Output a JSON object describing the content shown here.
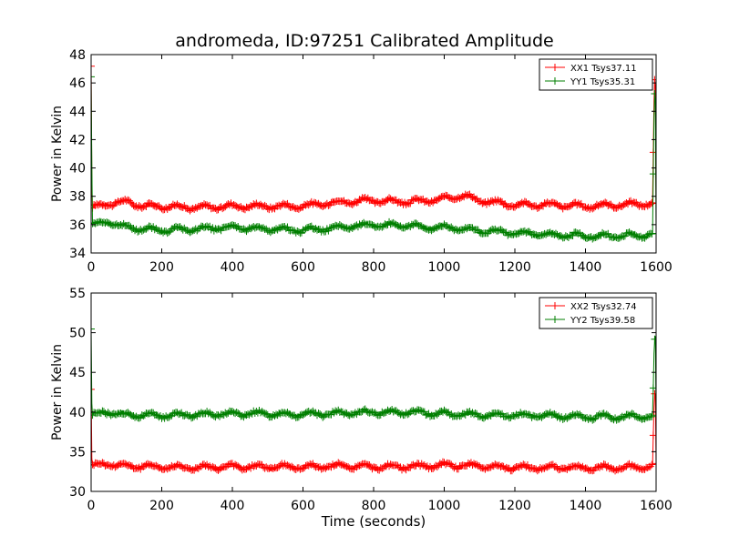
{
  "figure": {
    "title": "andromeda, ID:97251 Calibrated Amplitude",
    "xlabel": "Time (seconds)"
  },
  "colors": {
    "XX": "#ff0000",
    "YY": "#007f00",
    "axis": "#000000"
  },
  "chart_data": [
    {
      "type": "line",
      "markers": "plus",
      "ylabel": "Power in Kelvin",
      "xlim": [
        0,
        1600
      ],
      "ylim": [
        34,
        48
      ],
      "xticks": [
        0,
        200,
        400,
        600,
        800,
        1000,
        1200,
        1400,
        1600
      ],
      "yticks": [
        34,
        36,
        38,
        40,
        42,
        44,
        46,
        48
      ],
      "legend": "top-right",
      "series": [
        {
          "name": "XX1 Tsys37.11",
          "color": "#ff0000",
          "baseline": 37.3,
          "x": [
            0,
            1,
            2,
            3,
            50,
            100,
            150,
            200,
            300,
            400,
            500,
            600,
            700,
            800,
            900,
            1000,
            1050,
            1100,
            1200,
            1300,
            1400,
            1500,
            1590,
            1592,
            1595,
            1598,
            1600
          ],
          "y": [
            47.1,
            43.5,
            38.5,
            37.2,
            37.5,
            37.6,
            37.3,
            37.3,
            37.2,
            37.3,
            37.3,
            37.3,
            37.6,
            37.7,
            37.6,
            37.8,
            38.1,
            37.7,
            37.4,
            37.4,
            37.3,
            37.4,
            37.5,
            41.0,
            46.3,
            45.5,
            37.3
          ]
        },
        {
          "name": "YY1 Tsys35.31",
          "color": "#007f00",
          "baseline": 35.5,
          "x": [
            0,
            1,
            2,
            3,
            50,
            100,
            150,
            200,
            300,
            400,
            500,
            600,
            700,
            800,
            900,
            1000,
            1100,
            1200,
            1300,
            1400,
            1500,
            1590,
            1592,
            1595,
            1598,
            1600
          ],
          "y": [
            46.5,
            44.0,
            40.0,
            36.0,
            36.2,
            35.8,
            35.7,
            35.6,
            35.7,
            35.8,
            35.7,
            35.6,
            35.8,
            36.0,
            35.9,
            35.8,
            35.6,
            35.4,
            35.3,
            35.2,
            35.2,
            35.3,
            39.5,
            45.5,
            44.5,
            35.3
          ]
        }
      ]
    },
    {
      "type": "line",
      "markers": "plus",
      "ylabel": "Power in Kelvin",
      "xlabel": "Time (seconds)",
      "xlim": [
        0,
        1600
      ],
      "ylim": [
        30,
        55
      ],
      "xticks": [
        0,
        200,
        400,
        600,
        800,
        1000,
        1200,
        1400,
        1600
      ],
      "yticks": [
        30,
        35,
        40,
        45,
        50,
        55
      ],
      "legend": "top-right",
      "series": [
        {
          "name": "XX2 Tsys32.74",
          "color": "#ff0000",
          "baseline": 33.1,
          "x": [
            0,
            1,
            2,
            3,
            50,
            100,
            200,
            300,
            400,
            500,
            600,
            700,
            800,
            900,
            1000,
            1100,
            1200,
            1300,
            1400,
            1500,
            1590,
            1592,
            1595,
            1598,
            1600
          ],
          "y": [
            43.0,
            38.0,
            34.0,
            33.2,
            33.5,
            33.2,
            33.1,
            33.0,
            33.1,
            33.1,
            33.1,
            33.2,
            33.1,
            33.1,
            33.3,
            33.2,
            33.0,
            33.0,
            33.0,
            33.0,
            33.1,
            37.0,
            42.0,
            42.0,
            33.1
          ]
        },
        {
          "name": "YY2 Tsys39.58",
          "color": "#007f00",
          "baseline": 39.6,
          "x": [
            0,
            1,
            2,
            3,
            50,
            100,
            200,
            300,
            400,
            500,
            600,
            700,
            800,
            900,
            1000,
            1100,
            1200,
            1300,
            1400,
            1500,
            1590,
            1592,
            1595,
            1598,
            1600
          ],
          "y": [
            50.5,
            45.0,
            41.0,
            39.6,
            40.0,
            39.6,
            39.6,
            39.7,
            39.8,
            39.8,
            39.7,
            39.8,
            40.0,
            40.0,
            39.8,
            39.6,
            39.6,
            39.5,
            39.4,
            39.4,
            39.5,
            43.0,
            49.0,
            49.3,
            39.4
          ]
        }
      ]
    }
  ]
}
